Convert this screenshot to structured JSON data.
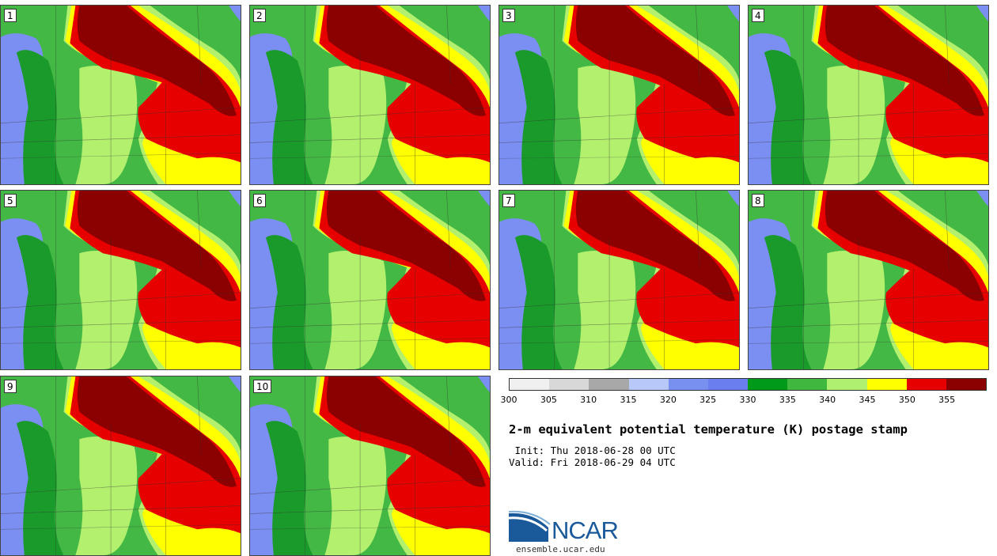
{
  "panels": [
    {
      "label": "1"
    },
    {
      "label": "2"
    },
    {
      "label": "3"
    },
    {
      "label": "4"
    },
    {
      "label": "5"
    },
    {
      "label": "6"
    },
    {
      "label": "7"
    },
    {
      "label": "8"
    },
    {
      "label": "9"
    },
    {
      "label": "10"
    }
  ],
  "colorbar": {
    "colors": [
      "#f0f0f0",
      "#d8d8d8",
      "#a8a8a8",
      "#b8c8f8",
      "#7890f0",
      "#6a7ef0",
      "#009a1a",
      "#40b840",
      "#b0f070",
      "#ffff00",
      "#e60000",
      "#8b0000"
    ],
    "ticks": [
      "300",
      "305",
      "310",
      "315",
      "320",
      "325",
      "330",
      "335",
      "340",
      "345",
      "350",
      "355"
    ]
  },
  "title": "2-m equivalent potential temperature (K) postage stamp",
  "init": " Init: Thu 2018-06-28 00 UTC",
  "valid": "Valid: Fri 2018-06-29 04 UTC",
  "logo": {
    "name": "NCAR",
    "url": "ensemble.ucar.edu"
  },
  "map_colors": {
    "blue": "#7b8ef2",
    "dark_green": "#1a9a2a",
    "green": "#44b844",
    "light_green": "#b2f06e",
    "yellow": "#ffff00",
    "red": "#e60000",
    "dark_red": "#8b0000",
    "border": "#333333"
  }
}
